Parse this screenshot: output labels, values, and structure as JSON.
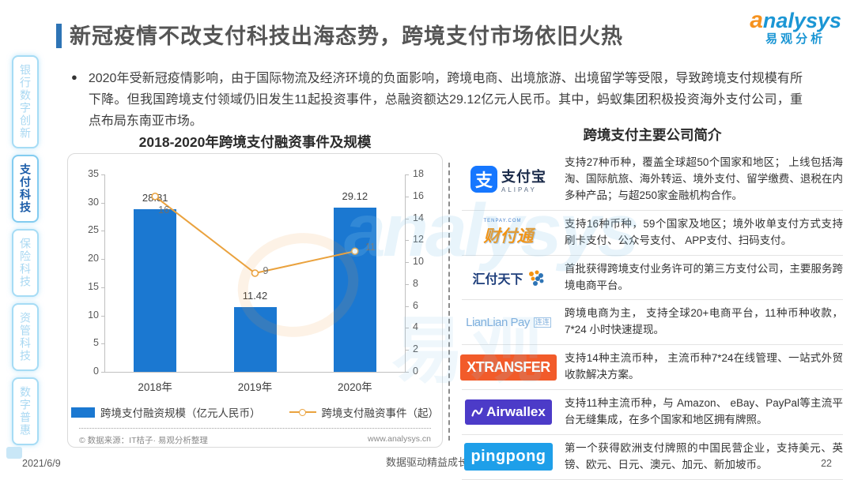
{
  "page": {
    "title": "新冠疫情不改支付科技出海态势，跨境支付市场依旧火热",
    "logo": {
      "en": "analysys",
      "cn": "易观分析"
    },
    "footer": {
      "date": "2021/6/9",
      "slogan": "数据驱动精益成长",
      "page_number": "22"
    }
  },
  "sidebar": {
    "items": [
      {
        "label": "银行数字创新",
        "active": false
      },
      {
        "label": "支付科技",
        "active": true
      },
      {
        "label": "保险科技",
        "active": false
      },
      {
        "label": "资管科技",
        "active": false
      },
      {
        "label": "数字普惠",
        "active": false
      }
    ]
  },
  "bullet": {
    "text": "2020年受新冠疫情影响，由于国际物流及经济环境的负面影响，跨境电商、出境旅游、出境留学等受限，导致跨境支付规模有所下降。但我国跨境支付领域仍旧发生11起投资事件，总融资额达29.12亿元人民币。其中，蚂蚁集团积极投资海外支付公司，重点布局东南亚市场。"
  },
  "chart_data": {
    "type": "bar",
    "title": "2018-2020年跨境支付融资事件及规模",
    "categories": [
      "2018年",
      "2019年",
      "2020年"
    ],
    "series": [
      {
        "name": "跨境支付融资规模（亿元人民币）",
        "kind": "bar",
        "axis": "left",
        "values": [
          28.81,
          11.42,
          29.12
        ],
        "color": "#1B78D1"
      },
      {
        "name": "跨境支付融资事件（起）",
        "kind": "line",
        "axis": "right",
        "values": [
          16,
          9,
          11
        ],
        "color": "#EAA23E"
      }
    ],
    "left_axis": {
      "min": 0,
      "max": 35,
      "ticks": [
        0,
        5,
        10,
        15,
        20,
        25,
        30,
        35
      ]
    },
    "right_axis": {
      "min": 0,
      "max": 18,
      "ticks": [
        0,
        2,
        4,
        6,
        8,
        10,
        12,
        14,
        16,
        18
      ]
    },
    "grid": false,
    "legend_position": "bottom",
    "source_left": "© 数据来源：IT桔子· 易观分析整理",
    "source_right": "www.analysys.cn"
  },
  "right_panel": {
    "title": "跨境支付主要公司简介",
    "companies": [
      {
        "logo": {
          "type": "alipay",
          "icon_char": "支",
          "text": "支付宝",
          "subtext": "ALIPAY"
        },
        "desc": "支持27种币种，覆盖全球超50个国家和地区； 上线包括海淘、国际航旅、海外转运、境外支付、留学缴费、退税在内多种产品；与超250家金融机构合作。"
      },
      {
        "logo": {
          "type": "tenpay",
          "text": "财付通",
          "subtext": "TENPAY.COM"
        },
        "desc": "支持16种币种，59个国家及地区；境外收单支付方式支持刷卡支付、公众号支付、 APP支付、扫码支付。"
      },
      {
        "logo": {
          "type": "huifu",
          "text": "汇付天下"
        },
        "desc": "首批获得跨境支付业务许可的第三方支付公司，主要服务跨境电商平台。"
      },
      {
        "logo": {
          "type": "lianlian",
          "text": "LianLian Pay",
          "badge": "连连"
        },
        "desc": "跨境电商为主， 支持全球20+电商平台，11种币种收款，7*24 小时快速提现。"
      },
      {
        "logo": {
          "type": "block",
          "variant": "xtransfer",
          "text": "XTRANSFER",
          "bg": "#F25B2A",
          "fg": "#FFFFFF"
        },
        "desc": "支持14种主流币种， 主流币种7*24在线管理、一站式外贸收款解决方案。"
      },
      {
        "logo": {
          "type": "block",
          "variant": "airwallex",
          "text": "Airwallex",
          "bg": "#4C3BC8",
          "fg": "#FFFFFF",
          "mark": "wave"
        },
        "desc": "支持11种主流币种，与 Amazon、 eBay、PayPal等主流平台无缝集成，在多个国家和地区拥有牌照。"
      },
      {
        "logo": {
          "type": "block",
          "variant": "pingpong",
          "text": "pingpong",
          "bg": "#1E9FE9",
          "fg": "#FFFFFF"
        },
        "desc": "第一个获得欧洲支付牌照的中国民营企业，支持美元、英镑、欧元、日元、澳元、加元、新加坡币。"
      }
    ]
  }
}
